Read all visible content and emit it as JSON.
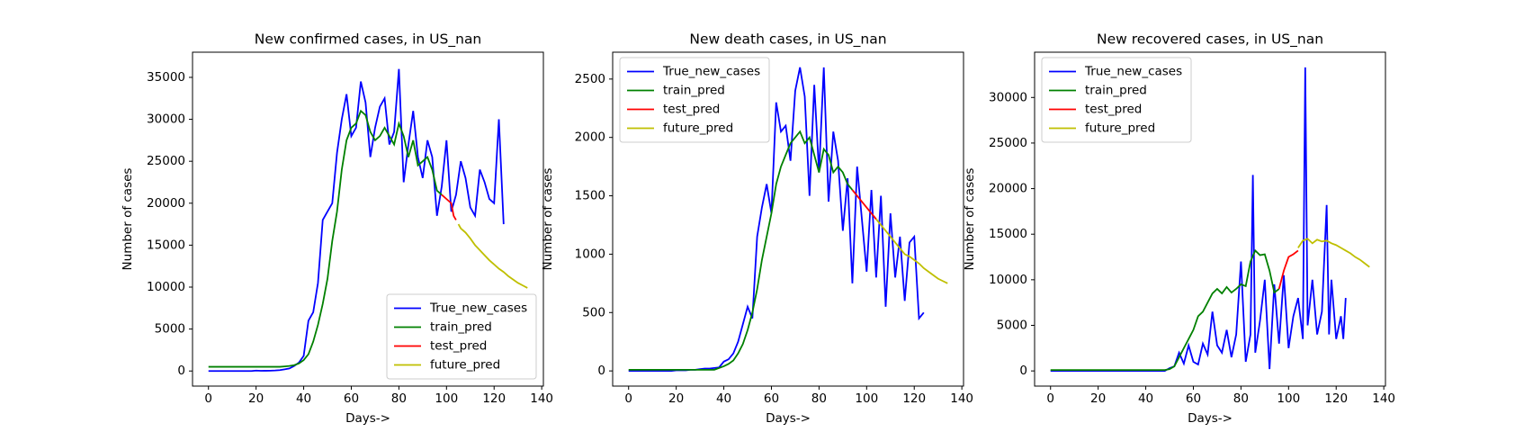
{
  "chart_data": [
    {
      "type": "line",
      "title": "New confirmed cases, in US_nan",
      "x_label": "Days->",
      "y_label": "Number of cases",
      "legend": "lower right",
      "xlim": [
        -6.7,
        140.7
      ],
      "xticks": [
        0,
        20,
        40,
        60,
        80,
        100,
        120,
        140
      ],
      "ylim": [
        -1800,
        38000
      ],
      "yticks": [
        0,
        5000,
        10000,
        15000,
        20000,
        25000,
        30000,
        35000
      ],
      "series": [
        {
          "name": "True_new_cases",
          "color": "#0000ff",
          "x": [
            0,
            2,
            4,
            6,
            8,
            10,
            12,
            14,
            16,
            18,
            20,
            22,
            24,
            26,
            28,
            30,
            32,
            34,
            36,
            38,
            40,
            42,
            44,
            46,
            48,
            50,
            52,
            54,
            56,
            58,
            60,
            62,
            64,
            66,
            68,
            70,
            72,
            74,
            76,
            78,
            80,
            82,
            84,
            86,
            88,
            90,
            92,
            94,
            96,
            98,
            100,
            102,
            104,
            106,
            108,
            110,
            112,
            114,
            116,
            118,
            120,
            122,
            124
          ],
          "values": [
            0,
            0,
            0,
            0,
            0,
            0,
            0,
            0,
            0,
            0,
            50,
            20,
            30,
            40,
            60,
            100,
            200,
            300,
            600,
            1000,
            1800,
            6000,
            7000,
            10500,
            18000,
            19000,
            20000,
            26000,
            30000,
            33000,
            28000,
            29000,
            34500,
            32000,
            25500,
            29000,
            31500,
            32500,
            27000,
            28500,
            36000,
            22500,
            27000,
            31000,
            25500,
            23000,
            27500,
            25500,
            18500,
            22000,
            27500,
            19000,
            21000,
            25000,
            23000,
            19500,
            18500,
            24000,
            22500,
            20500,
            20000,
            30000,
            17500
          ]
        },
        {
          "name": "train_pred",
          "color": "#008000",
          "x": [
            0,
            2,
            4,
            6,
            8,
            10,
            12,
            14,
            16,
            18,
            20,
            22,
            24,
            26,
            28,
            30,
            32,
            34,
            36,
            38,
            40,
            42,
            44,
            46,
            48,
            50,
            52,
            54,
            56,
            58,
            60,
            62,
            64,
            66,
            68,
            70,
            72,
            74,
            76,
            78,
            80,
            82,
            84,
            86,
            88,
            90,
            92,
            94,
            96,
            98
          ],
          "values": [
            500,
            500,
            500,
            500,
            500,
            500,
            500,
            500,
            500,
            500,
            500,
            500,
            500,
            500,
            500,
            500,
            550,
            600,
            700,
            900,
            1300,
            2000,
            3500,
            5500,
            8000,
            11000,
            15500,
            19000,
            24000,
            27500,
            29000,
            29500,
            31000,
            30500,
            28500,
            27500,
            28000,
            29000,
            28000,
            27000,
            29500,
            28000,
            25500,
            27500,
            24500,
            25000,
            25500,
            24000,
            21500,
            21000
          ]
        },
        {
          "name": "test_pred",
          "color": "#ff0000",
          "x": [
            98,
            100,
            102,
            103,
            104
          ],
          "values": [
            21000,
            20500,
            20000,
            18500,
            18000
          ]
        },
        {
          "name": "future_pred",
          "color": "#bfbf00",
          "x": [
            105,
            106,
            108,
            110,
            112,
            114,
            116,
            118,
            120,
            122,
            124,
            126,
            128,
            130,
            132,
            134
          ],
          "values": [
            17500,
            17000,
            16500,
            15800,
            15000,
            14400,
            13800,
            13200,
            12700,
            12200,
            11800,
            11300,
            10900,
            10500,
            10200,
            9900
          ]
        }
      ]
    },
    {
      "type": "line",
      "title": "New death cases, in US_nan",
      "x_label": "Days->",
      "y_label": "Number of cases",
      "legend": "upper left",
      "xlim": [
        -6.7,
        140.7
      ],
      "xticks": [
        0,
        20,
        40,
        60,
        80,
        100,
        120,
        140
      ],
      "ylim": [
        -130,
        2730
      ],
      "yticks": [
        0,
        500,
        1000,
        1500,
        2000,
        2500
      ],
      "series": [
        {
          "name": "True_new_cases",
          "color": "#0000ff",
          "x": [
            0,
            2,
            4,
            6,
            8,
            10,
            12,
            14,
            16,
            18,
            20,
            22,
            24,
            26,
            28,
            30,
            32,
            34,
            36,
            38,
            40,
            42,
            44,
            46,
            48,
            50,
            52,
            54,
            56,
            58,
            60,
            62,
            64,
            66,
            68,
            70,
            72,
            74,
            76,
            78,
            80,
            82,
            84,
            86,
            88,
            90,
            92,
            94,
            96,
            98,
            100,
            102,
            104,
            106,
            108,
            110,
            112,
            114,
            116,
            118,
            120,
            122,
            124
          ],
          "values": [
            0,
            0,
            0,
            0,
            0,
            0,
            0,
            0,
            0,
            0,
            5,
            5,
            5,
            10,
            10,
            15,
            20,
            20,
            25,
            30,
            80,
            100,
            150,
            250,
            400,
            550,
            450,
            1150,
            1400,
            1600,
            1350,
            2300,
            2050,
            2100,
            1800,
            2400,
            2600,
            2350,
            1500,
            2450,
            1700,
            2600,
            1450,
            2050,
            1800,
            1200,
            1650,
            750,
            1750,
            1300,
            850,
            1550,
            800,
            1500,
            550,
            1350,
            800,
            1150,
            600,
            1100,
            1150,
            450,
            500
          ]
        },
        {
          "name": "train_pred",
          "color": "#008000",
          "x": [
            0,
            2,
            4,
            6,
            8,
            10,
            12,
            14,
            16,
            18,
            20,
            22,
            24,
            26,
            28,
            30,
            32,
            34,
            36,
            38,
            40,
            42,
            44,
            46,
            48,
            50,
            52,
            54,
            56,
            58,
            60,
            62,
            64,
            66,
            68,
            70,
            72,
            74,
            76,
            78,
            80,
            82,
            84,
            86,
            88,
            90,
            92,
            94
          ],
          "values": [
            10,
            10,
            10,
            10,
            10,
            10,
            10,
            10,
            10,
            10,
            10,
            10,
            10,
            10,
            10,
            10,
            10,
            10,
            10,
            25,
            40,
            60,
            90,
            150,
            230,
            350,
            500,
            700,
            950,
            1150,
            1350,
            1600,
            1750,
            1850,
            1950,
            2000,
            2050,
            1950,
            2000,
            1850,
            1700,
            1900,
            1850,
            1700,
            1750,
            1700,
            1600,
            1550
          ]
        },
        {
          "name": "test_pred",
          "color": "#ff0000",
          "x": [
            94,
            96,
            98,
            100,
            102,
            104
          ],
          "values": [
            1550,
            1500,
            1450,
            1400,
            1350,
            1300
          ]
        },
        {
          "name": "future_pred",
          "color": "#bfbf00",
          "x": [
            104,
            106,
            108,
            110,
            112,
            114,
            116,
            118,
            120,
            122,
            124,
            126,
            128,
            130,
            132,
            134
          ],
          "values": [
            1300,
            1250,
            1200,
            1150,
            1100,
            1050,
            1000,
            980,
            950,
            920,
            880,
            850,
            820,
            790,
            770,
            750
          ]
        }
      ]
    },
    {
      "type": "line",
      "title": "New recovered cases, in US_nan",
      "x_label": "Days->",
      "y_label": "Number of cases",
      "legend": "upper left",
      "xlim": [
        -6.7,
        140.7
      ],
      "xticks": [
        0,
        20,
        40,
        60,
        80,
        100,
        120,
        140
      ],
      "ylim": [
        -1665,
        34965
      ],
      "yticks": [
        0,
        5000,
        10000,
        15000,
        20000,
        25000,
        30000
      ],
      "series": [
        {
          "name": "True_new_cases",
          "color": "#0000ff",
          "x": [
            0,
            2,
            4,
            6,
            8,
            10,
            12,
            14,
            16,
            18,
            20,
            22,
            24,
            26,
            28,
            30,
            32,
            34,
            36,
            38,
            40,
            42,
            44,
            46,
            48,
            50,
            52,
            54,
            56,
            58,
            60,
            62,
            64,
            66,
            68,
            70,
            72,
            74,
            76,
            78,
            80,
            82,
            84,
            85,
            86,
            88,
            90,
            92,
            94,
            96,
            98,
            100,
            102,
            104,
            106,
            107,
            108,
            110,
            112,
            114,
            116,
            117,
            118,
            120,
            122,
            123,
            124
          ],
          "values": [
            0,
            0,
            0,
            0,
            0,
            0,
            0,
            0,
            0,
            0,
            0,
            0,
            0,
            0,
            0,
            0,
            0,
            0,
            0,
            0,
            0,
            0,
            0,
            0,
            0,
            300,
            500,
            2000,
            800,
            2800,
            1000,
            700,
            3000,
            1800,
            6500,
            2800,
            2000,
            4500,
            1500,
            4000,
            12000,
            1000,
            4000,
            21500,
            2000,
            5500,
            10000,
            200,
            9500,
            3000,
            10500,
            2500,
            6000,
            8000,
            3500,
            33300,
            5000,
            10000,
            4000,
            6500,
            18200,
            4000,
            10000,
            3500,
            6000,
            3500,
            8000
          ]
        },
        {
          "name": "train_pred",
          "color": "#008000",
          "x": [
            0,
            2,
            4,
            6,
            8,
            10,
            12,
            14,
            16,
            18,
            20,
            22,
            24,
            26,
            28,
            30,
            32,
            34,
            36,
            38,
            40,
            42,
            44,
            46,
            48,
            50,
            52,
            54,
            56,
            58,
            60,
            62,
            64,
            66,
            68,
            70,
            72,
            74,
            76,
            78,
            80,
            82,
            84,
            86,
            88,
            90,
            92,
            94,
            96
          ],
          "values": [
            100,
            100,
            100,
            100,
            100,
            100,
            100,
            100,
            100,
            100,
            100,
            100,
            100,
            100,
            100,
            100,
            100,
            100,
            100,
            100,
            100,
            100,
            100,
            100,
            100,
            200,
            500,
            1500,
            2500,
            3500,
            4500,
            6000,
            6500,
            7500,
            8500,
            9000,
            8500,
            9200,
            8600,
            9000,
            9500,
            9300,
            12000,
            13200,
            12700,
            12800,
            11000,
            8600,
            9000
          ]
        },
        {
          "name": "test_pred",
          "color": "#ff0000",
          "x": [
            96,
            98,
            100,
            102,
            104
          ],
          "values": [
            9000,
            11000,
            12500,
            12800,
            13200
          ]
        },
        {
          "name": "future_pred",
          "color": "#bfbf00",
          "x": [
            104,
            106,
            108,
            110,
            112,
            114,
            116,
            118,
            120,
            122,
            124,
            126,
            128,
            130,
            132,
            134
          ],
          "values": [
            13500,
            14300,
            14500,
            14000,
            14400,
            14200,
            14300,
            14000,
            13800,
            13500,
            13200,
            12900,
            12500,
            12200,
            11800,
            11400
          ]
        }
      ]
    }
  ]
}
